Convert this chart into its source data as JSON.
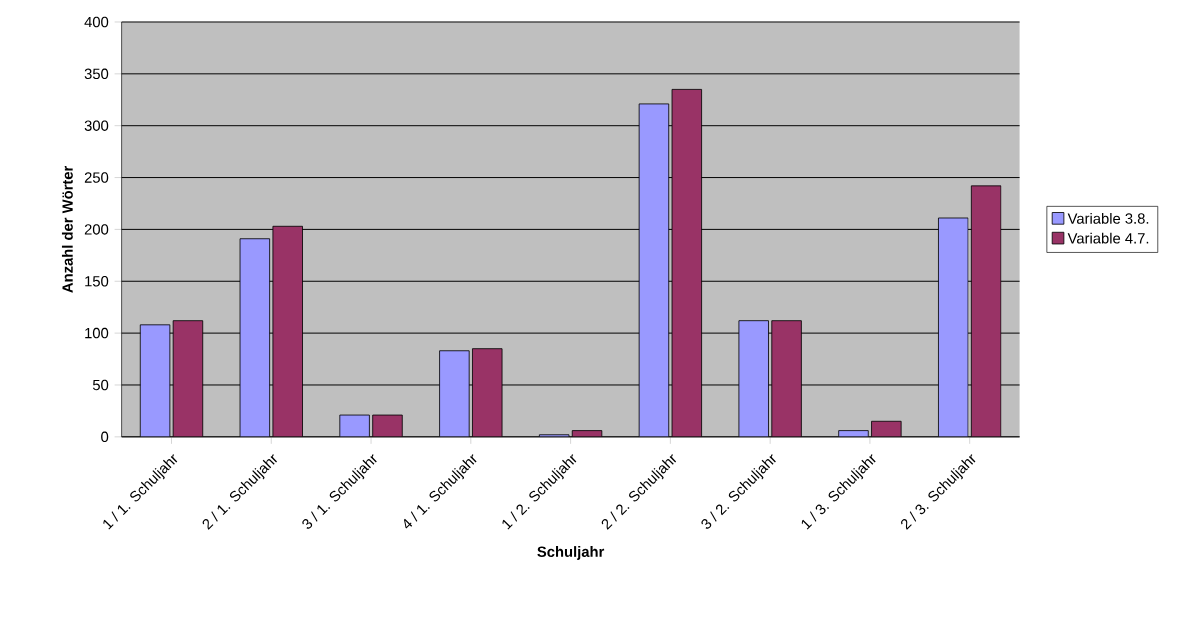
{
  "chart_data": {
    "type": "bar",
    "xlabel": "Schuljahr",
    "ylabel": "Anzahl der Wörter",
    "categories": [
      "1 / 1. Schuljahr",
      "2 / 1. Schuljahr",
      "3 / 1. Schuljahr",
      "4 / 1. Schuljahr",
      "1 / 2. Schuljahr",
      "2 / 2. Schuljahr",
      "3 / 2. Schuljahr",
      "1 / 3. Schuljahr",
      "2 / 3. Schuljahr"
    ],
    "series": [
      {
        "name": "Variable 3.8.",
        "color": "#9999ff",
        "values": [
          108,
          191,
          21,
          83,
          2,
          321,
          112,
          6,
          211
        ]
      },
      {
        "name": "Variable 4.7.",
        "color": "#993366",
        "values": [
          112,
          203,
          21,
          85,
          6,
          335,
          112,
          15,
          242
        ]
      }
    ],
    "ylim": [
      0,
      400
    ],
    "yticks": [
      0,
      50,
      100,
      150,
      200,
      250,
      300,
      350,
      400
    ],
    "grid": "y",
    "legend": "right"
  }
}
